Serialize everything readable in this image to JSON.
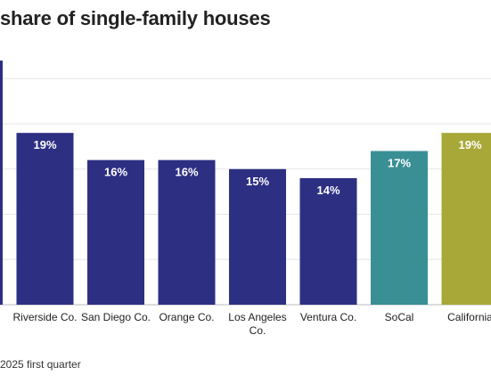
{
  "title": "share of single-family houses",
  "footer": "2025 first quarter",
  "chart_data": {
    "type": "bar",
    "categories": [
      "",
      "Riverside Co.",
      "San Diego Co.",
      "Orange Co.",
      "Los Angeles Co.",
      "Ventura Co.",
      "SoCal",
      "California"
    ],
    "category_lines": [
      [
        ""
      ],
      [
        "Riverside Co."
      ],
      [
        "San Diego Co."
      ],
      [
        "Orange Co."
      ],
      [
        "Los Angeles",
        "Co."
      ],
      [
        "Ventura Co."
      ],
      [
        "SoCal"
      ],
      [
        "California"
      ]
    ],
    "values": [
      27,
      19,
      16,
      16,
      15,
      14,
      17,
      19
    ],
    "value_labels": [
      "",
      "19%",
      "16%",
      "16%",
      "15%",
      "14%",
      "17%",
      "19%"
    ],
    "colors": [
      "#2d2f82",
      "#2d2f82",
      "#2d2f82",
      "#2d2f82",
      "#2d2f82",
      "#2d2f82",
      "#3a8f94",
      "#a8a838"
    ],
    "ylim": [
      0,
      27
    ],
    "grid": true,
    "xlabel": "",
    "ylabel": ""
  }
}
